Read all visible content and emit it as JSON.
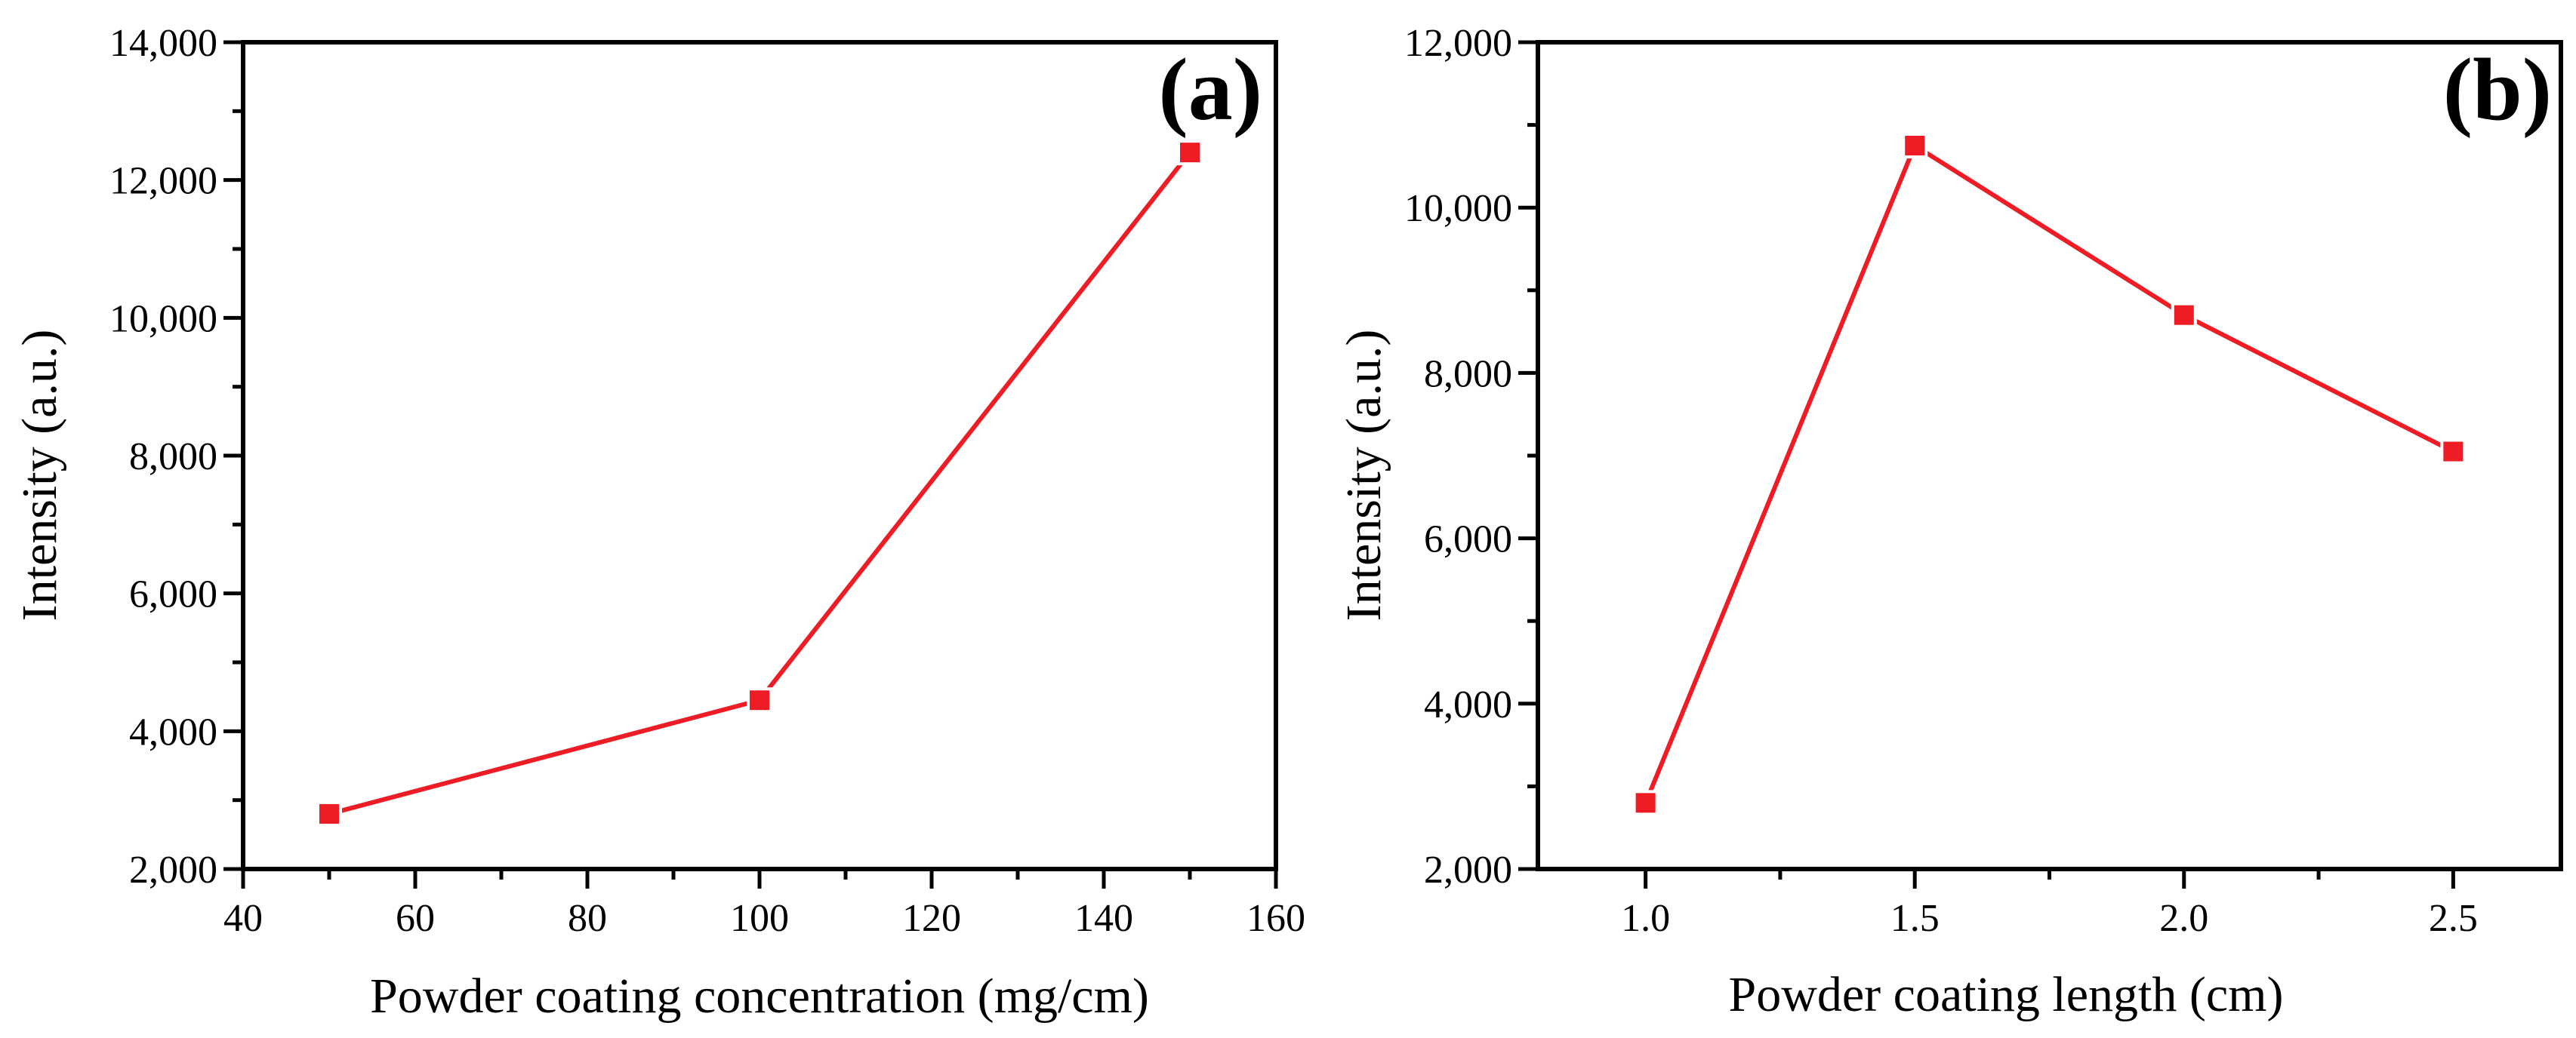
{
  "chart_data": [
    {
      "type": "line",
      "panel_label": "(a)",
      "xlabel": "Powder coating concentration (mg/cm)",
      "ylabel": "Intensity (a.u.)",
      "xlim": [
        40,
        160
      ],
      "ylim": [
        2000,
        14000
      ],
      "xticks": [
        40,
        60,
        80,
        100,
        120,
        140,
        160
      ],
      "xtick_labels": [
        "40",
        "60",
        "80",
        "100",
        "120",
        "140",
        "160"
      ],
      "yticks": [
        2000,
        4000,
        6000,
        8000,
        10000,
        12000,
        14000
      ],
      "ytick_labels": [
        "2,000",
        "4,000",
        "6,000",
        "8,000",
        "10,000",
        "12,000",
        "14,000"
      ],
      "x_minor_step": 10,
      "y_minor_step": 1000,
      "series": [
        {
          "name": "intensity",
          "color": "#ee1c25",
          "marker": "square",
          "x": [
            50,
            100,
            150
          ],
          "y": [
            2800,
            4450,
            12400
          ]
        }
      ]
    },
    {
      "type": "line",
      "panel_label": "(b)",
      "xlabel": "Powder coating length (cm)",
      "ylabel": "Intensity (a.u.)",
      "xlim": [
        0.8,
        2.7
      ],
      "ylim": [
        2000,
        12000
      ],
      "xticks": [
        1.0,
        1.5,
        2.0,
        2.5
      ],
      "xtick_labels": [
        "1.0",
        "1.5",
        "2.0",
        "2.5"
      ],
      "yticks": [
        2000,
        4000,
        6000,
        8000,
        10000,
        12000
      ],
      "ytick_labels": [
        "2,000",
        "4,000",
        "6,000",
        "8,000",
        "10,000",
        "12,000"
      ],
      "x_minor_step": 0.25,
      "y_minor_step": 1000,
      "series": [
        {
          "name": "intensity",
          "color": "#ee1c25",
          "marker": "square",
          "x": [
            1.0,
            1.5,
            2.0,
            2.5
          ],
          "y": [
            2800,
            10750,
            8700,
            7050
          ]
        }
      ]
    }
  ]
}
